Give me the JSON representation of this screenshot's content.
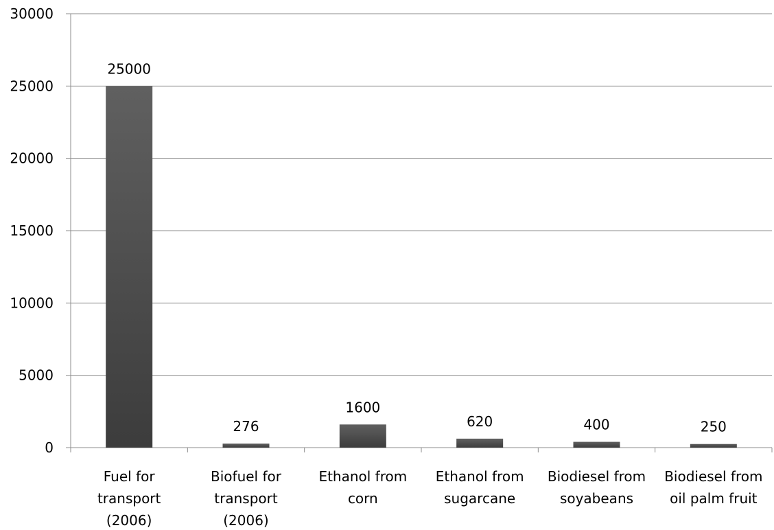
{
  "chart_data": {
    "type": "bar",
    "categories": [
      [
        "Fuel for",
        "transport",
        "(2006)"
      ],
      [
        "Biofuel for",
        "transport",
        "(2006)"
      ],
      [
        "Ethanol from",
        "corn"
      ],
      [
        "Ethanol from",
        "sugarcane"
      ],
      [
        "Biodiesel from",
        "soyabeans"
      ],
      [
        "Biodiesel from",
        "oil palm fruit"
      ]
    ],
    "values": [
      25000,
      276,
      1600,
      620,
      400,
      250
    ],
    "data_labels": [
      "25000",
      "276",
      "1600",
      "620",
      "400",
      "250"
    ],
    "y_ticks": [
      "0",
      "5000",
      "10000",
      "15000",
      "20000",
      "25000",
      "30000"
    ],
    "ylim": [
      0,
      30000
    ],
    "grid": true,
    "bar_color_top": "#606060",
    "bar_color_bottom": "#3c3c3c"
  }
}
